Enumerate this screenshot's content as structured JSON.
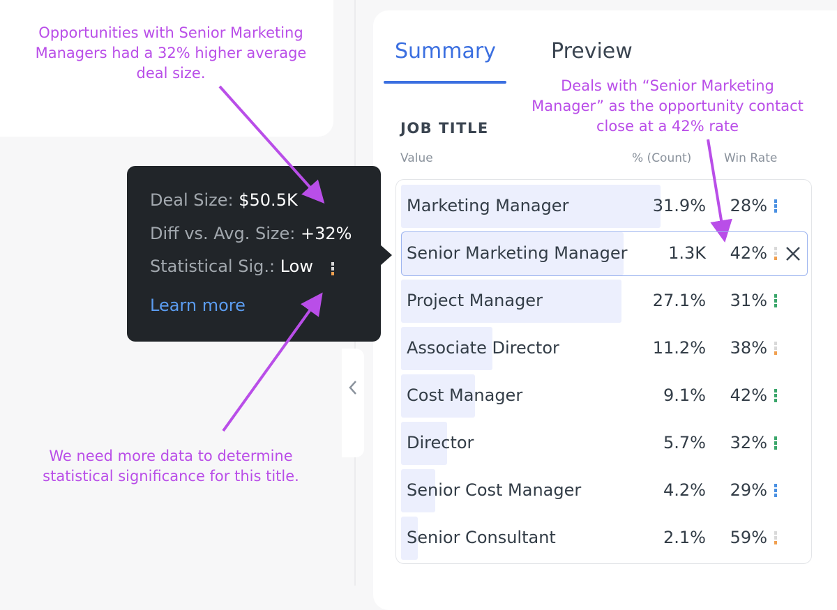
{
  "annotations": [
    "Opportunities with Senior Marketing Managers had a 32% higher average deal size.",
    "We need more data to determine statistical significance for this title.",
    "Deals with “Senior Marketing Manager” as the opportunity contact close at a 42% rate"
  ],
  "tabs": [
    "Summary",
    "Preview"
  ],
  "section_title": "JOB TITLE",
  "columns": [
    "Value",
    "% (Count)",
    "Win Rate"
  ],
  "tooltip": {
    "rows": [
      {
        "label": "Deal Size:",
        "value": "$50.5K"
      },
      {
        "label": "Diff vs. Avg. Size:",
        "value": "+32%"
      },
      {
        "label": "Statistical Sig.:",
        "value": "Low"
      }
    ],
    "signal": [
      "#d9d9d9",
      "#d9d9d9",
      "#f0a050"
    ],
    "link": "Learn more"
  },
  "table": {
    "rows": [
      {
        "label": "Marketing Manager",
        "value": 31.9,
        "value_label": "31.9%",
        "win_rate": "28%",
        "signal": [
          "#4a90e2",
          "#4a90e2",
          "#4a90e2"
        ]
      },
      {
        "label": "Senior Marketing Manager",
        "value": 27.4,
        "count_label": "1.3K",
        "win_rate": "42%",
        "signal": [
          "#d9d9d9",
          "#d9d9d9",
          "#f0a050"
        ],
        "selected": true
      },
      {
        "label": "Project Manager",
        "value": 27.1,
        "value_label": "27.1%",
        "win_rate": "31%",
        "signal": [
          "#3aa66a",
          "#3aa66a",
          "#3aa66a"
        ]
      },
      {
        "label": "Associate Director",
        "value": 11.2,
        "value_label": "11.2%",
        "win_rate": "38%",
        "signal": [
          "#d9d9d9",
          "#d9d9d9",
          "#f0a050"
        ]
      },
      {
        "label": "Cost Manager",
        "value": 9.1,
        "value_label": "9.1%",
        "win_rate": "42%",
        "signal": [
          "#3aa66a",
          "#3aa66a",
          "#3aa66a"
        ]
      },
      {
        "label": "Director",
        "value": 5.7,
        "value_label": "5.7%",
        "win_rate": "32%",
        "signal": [
          "#3aa66a",
          "#3aa66a",
          "#3aa66a"
        ]
      },
      {
        "label": "Senior Cost Manager",
        "value": 4.2,
        "value_label": "4.2%",
        "win_rate": "29%",
        "signal": [
          "#4a90e2",
          "#4a90e2",
          "#4a90e2"
        ]
      },
      {
        "label": "Senior Consultant",
        "value": 2.1,
        "value_label": "2.1%",
        "win_rate": "59%",
        "signal": [
          "#d9d9d9",
          "#d9d9d9",
          "#f0a050"
        ]
      }
    ]
  }
}
